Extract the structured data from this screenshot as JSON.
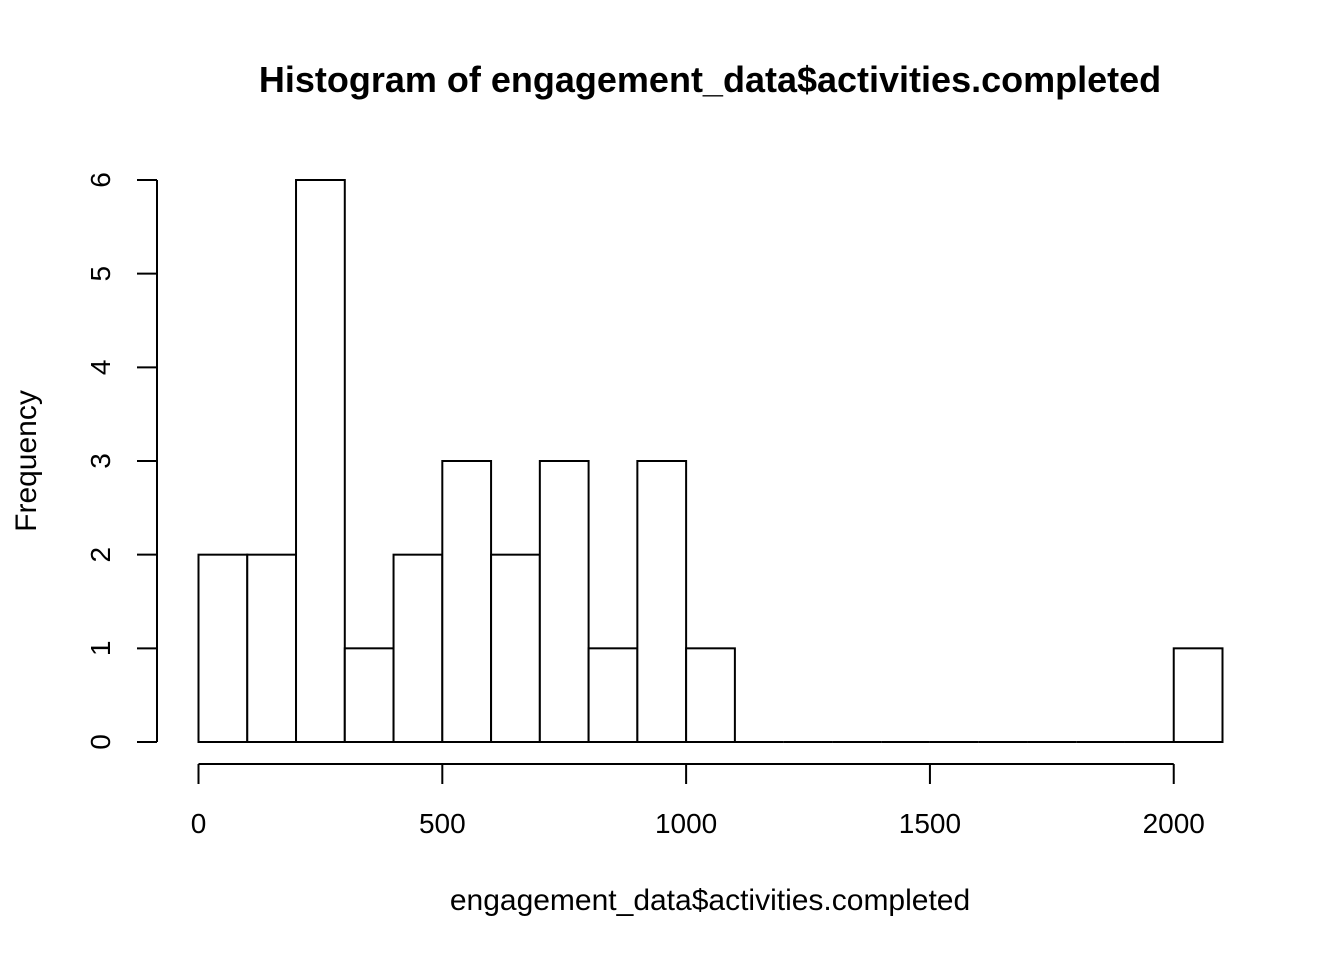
{
  "chart_data": {
    "type": "bar",
    "title": "Histogram of engagement_data$activities.completed",
    "xlabel": "engagement_data$activities.completed",
    "ylabel": "Frequency",
    "bin_width": 100,
    "bins": [
      {
        "start": 0,
        "end": 100,
        "count": 2
      },
      {
        "start": 100,
        "end": 200,
        "count": 2
      },
      {
        "start": 200,
        "end": 300,
        "count": 6
      },
      {
        "start": 300,
        "end": 400,
        "count": 1
      },
      {
        "start": 400,
        "end": 500,
        "count": 2
      },
      {
        "start": 500,
        "end": 600,
        "count": 3
      },
      {
        "start": 600,
        "end": 700,
        "count": 2
      },
      {
        "start": 700,
        "end": 800,
        "count": 3
      },
      {
        "start": 800,
        "end": 900,
        "count": 1
      },
      {
        "start": 900,
        "end": 1000,
        "count": 3
      },
      {
        "start": 1000,
        "end": 1100,
        "count": 1
      },
      {
        "start": 1100,
        "end": 1200,
        "count": 0
      },
      {
        "start": 1200,
        "end": 1300,
        "count": 0
      },
      {
        "start": 1300,
        "end": 1400,
        "count": 0
      },
      {
        "start": 1400,
        "end": 1500,
        "count": 0
      },
      {
        "start": 1500,
        "end": 1600,
        "count": 0
      },
      {
        "start": 1600,
        "end": 1700,
        "count": 0
      },
      {
        "start": 1700,
        "end": 1800,
        "count": 0
      },
      {
        "start": 1800,
        "end": 1900,
        "count": 0
      },
      {
        "start": 1900,
        "end": 2000,
        "count": 0
      },
      {
        "start": 2000,
        "end": 2100,
        "count": 1
      }
    ],
    "xlim": [
      0,
      2100
    ],
    "ylim": [
      0,
      6
    ],
    "x_ticks": [
      0,
      500,
      1000,
      1500,
      2000
    ],
    "y_ticks": [
      0,
      1,
      2,
      3,
      4,
      5,
      6
    ],
    "grid": false,
    "bar_fill": "#ffffff",
    "bar_stroke": "#000000"
  }
}
